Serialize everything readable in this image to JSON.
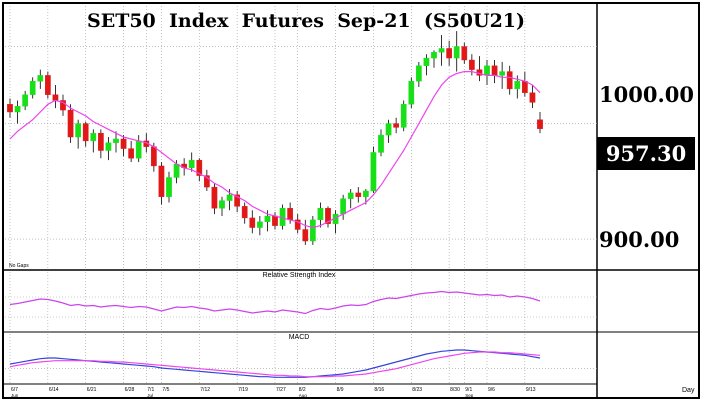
{
  "chart_data": {
    "type": "candlestick",
    "title": "SET50  Index  Futures  Sep-21  (S50U21)",
    "price_axis": {
      "ylim": [
        885,
        1020
      ],
      "tick_labels": [
        "1000.00",
        "900.00"
      ],
      "tick_values": [
        1000,
        900
      ],
      "last_value_label": "957.30",
      "last_value": 957.3
    },
    "note": "No Gaps",
    "date_ticks": [
      {
        "label": "6/7",
        "i": 0
      },
      {
        "label": "6/14",
        "i": 5
      },
      {
        "label": "6/21",
        "i": 10
      },
      {
        "label": "6/28",
        "i": 15
      },
      {
        "label": "7/1",
        "i": 18
      },
      {
        "label": "7/5",
        "i": 20
      },
      {
        "label": "7/12",
        "i": 25
      },
      {
        "label": "7/19",
        "i": 30
      },
      {
        "label": "7/27",
        "i": 35
      },
      {
        "label": "8/2",
        "i": 38
      },
      {
        "label": "8/9",
        "i": 43
      },
      {
        "label": "8/16",
        "i": 48
      },
      {
        "label": "8/23",
        "i": 53
      },
      {
        "label": "8/30",
        "i": 58
      },
      {
        "label": "9/1",
        "i": 60
      },
      {
        "label": "9/6",
        "i": 63
      },
      {
        "label": "9/13",
        "i": 68
      }
    ],
    "month_labels": [
      {
        "label": "Jun",
        "i": 0
      },
      {
        "label": "Jul",
        "i": 18
      },
      {
        "label": "Aug",
        "i": 38
      },
      {
        "label": "Sep",
        "i": 60
      }
    ],
    "x_axis_label": "Day",
    "candles": [
      [
        970,
        973,
        963,
        966
      ],
      [
        966,
        972,
        960,
        969
      ],
      [
        969,
        977,
        967,
        975
      ],
      [
        975,
        984,
        973,
        982
      ],
      [
        982,
        988,
        978,
        985
      ],
      [
        985,
        987,
        973,
        975
      ],
      [
        975,
        980,
        968,
        972
      ],
      [
        972,
        975,
        964,
        967
      ],
      [
        967,
        970,
        950,
        953
      ],
      [
        953,
        962,
        947,
        960
      ],
      [
        960,
        961,
        948,
        951
      ],
      [
        951,
        957,
        945,
        955
      ],
      [
        955,
        957,
        942,
        946
      ],
      [
        946,
        953,
        941,
        950
      ],
      [
        950,
        956,
        945,
        952
      ],
      [
        952,
        954,
        943,
        947
      ],
      [
        947,
        951,
        940,
        942
      ],
      [
        942,
        954,
        940,
        951
      ],
      [
        951,
        955,
        945,
        948
      ],
      [
        948,
        950,
        935,
        938
      ],
      [
        938,
        940,
        918,
        922
      ],
      [
        922,
        935,
        919,
        932
      ],
      [
        932,
        941,
        929,
        939
      ],
      [
        939,
        942,
        933,
        937
      ],
      [
        937,
        945,
        935,
        941
      ],
      [
        941,
        942,
        930,
        933
      ],
      [
        933,
        936,
        925,
        927
      ],
      [
        927,
        929,
        913,
        916
      ],
      [
        916,
        922,
        912,
        920
      ],
      [
        920,
        926,
        915,
        923
      ],
      [
        923,
        925,
        914,
        917
      ],
      [
        917,
        919,
        908,
        911
      ],
      [
        911,
        915,
        903,
        906
      ],
      [
        906,
        912,
        902,
        909
      ],
      [
        909,
        915,
        904,
        912
      ],
      [
        912,
        914,
        905,
        907
      ],
      [
        907,
        918,
        905,
        916
      ],
      [
        916,
        919,
        908,
        910
      ],
      [
        910,
        913,
        903,
        905
      ],
      [
        905,
        910,
        897,
        899
      ],
      [
        899,
        912,
        897,
        910
      ],
      [
        910,
        919,
        906,
        916
      ],
      [
        916,
        917,
        906,
        908
      ],
      [
        908,
        915,
        903,
        913
      ],
      [
        913,
        923,
        910,
        921
      ],
      [
        921,
        926,
        916,
        924
      ],
      [
        924,
        927,
        919,
        922
      ],
      [
        922,
        926,
        918,
        925
      ],
      [
        925,
        948,
        924,
        945
      ],
      [
        945,
        957,
        943,
        954
      ],
      [
        954,
        962,
        950,
        960
      ],
      [
        960,
        963,
        955,
        958
      ],
      [
        958,
        972,
        956,
        970
      ],
      [
        970,
        984,
        968,
        982
      ],
      [
        982,
        992,
        979,
        990
      ],
      [
        990,
        996,
        985,
        994
      ],
      [
        994,
        998,
        989,
        997
      ],
      [
        997,
        1006,
        990,
        999
      ],
      [
        999,
        1003,
        990,
        994
      ],
      [
        994,
        1008,
        987,
        1000
      ],
      [
        1000,
        1002,
        991,
        993
      ],
      [
        993,
        996,
        985,
        988
      ],
      [
        988,
        995,
        982,
        985
      ],
      [
        985,
        993,
        980,
        990
      ],
      [
        990,
        993,
        981,
        985
      ],
      [
        985,
        992,
        978,
        987
      ],
      [
        987,
        990,
        975,
        978
      ],
      [
        978,
        985,
        973,
        982
      ],
      [
        982,
        987,
        974,
        976
      ],
      [
        976,
        980,
        968,
        971
      ],
      [
        962,
        966,
        955,
        957.3
      ]
    ],
    "ma_values": [
      952,
      956,
      959,
      962,
      966,
      970,
      972,
      971,
      968,
      966,
      964,
      961,
      959,
      957,
      955,
      953,
      952,
      951,
      950,
      948,
      945,
      942,
      939,
      937,
      936,
      934,
      932,
      929,
      927,
      924,
      922,
      920,
      917,
      915,
      913,
      912,
      911,
      910,
      909,
      907,
      906,
      907,
      909,
      911,
      913,
      915,
      917,
      919,
      923,
      928,
      934,
      940,
      946,
      953,
      960,
      967,
      974,
      980,
      984,
      986,
      987,
      987,
      986,
      985,
      985,
      984,
      984,
      983,
      982,
      980,
      976
    ],
    "panels": [
      {
        "title": "Relative Strength Index",
        "rsi": [
          55,
          57,
          60,
          63,
          66,
          65,
          62,
          58,
          53,
          55,
          52,
          53,
          50,
          52,
          53,
          51,
          49,
          51,
          50,
          46,
          42,
          46,
          50,
          49,
          51,
          48,
          46,
          42,
          44,
          46,
          44,
          41,
          38,
          40,
          42,
          40,
          44,
          42,
          40,
          37,
          43,
          47,
          45,
          48,
          52,
          54,
          53,
          55,
          61,
          65,
          68,
          67,
          70,
          73,
          76,
          78,
          79,
          81,
          79,
          80,
          78,
          76,
          74,
          75,
          73,
          74,
          70,
          72,
          70,
          67,
          62
        ]
      },
      {
        "title": "MACD",
        "macd": [
          7,
          9,
          11,
          13,
          15,
          16,
          16,
          15,
          14,
          13,
          12,
          11,
          10,
          9,
          8,
          7,
          6,
          5,
          4,
          3,
          1,
          0,
          -1,
          -2,
          -3,
          -4,
          -5,
          -6,
          -7,
          -8,
          -9,
          -10,
          -11,
          -12,
          -12,
          -13,
          -13,
          -13,
          -13,
          -13,
          -12,
          -11,
          -10,
          -9,
          -8,
          -6,
          -4,
          -2,
          1,
          4,
          7,
          10,
          13,
          16,
          19,
          22,
          24,
          26,
          27,
          28,
          28,
          27,
          26,
          25,
          24,
          23,
          22,
          21,
          20,
          18,
          16
        ],
        "signal": [
          3,
          5,
          7,
          9,
          10,
          11,
          12,
          12,
          12,
          12,
          12,
          12,
          11,
          11,
          10,
          10,
          9,
          8,
          7,
          6,
          5,
          4,
          3,
          2,
          1,
          0,
          -1,
          -2,
          -3,
          -4,
          -5,
          -6,
          -7,
          -8,
          -9,
          -10,
          -10,
          -11,
          -11,
          -12,
          -12,
          -12,
          -12,
          -11,
          -11,
          -10,
          -9,
          -8,
          -6,
          -4,
          -2,
          0,
          3,
          6,
          9,
          12,
          15,
          17,
          19,
          21,
          23,
          24,
          25,
          25,
          25,
          24,
          24,
          23,
          22,
          21,
          20
        ]
      }
    ],
    "colors": {
      "up": "#18e018",
      "down": "#e01818",
      "ma": "#ee44ee",
      "rsi": "#cc44ee",
      "macd": "#3344dd",
      "signal": "#ee44ee",
      "grid": "#9a9a9a",
      "frame": "#000000"
    }
  }
}
